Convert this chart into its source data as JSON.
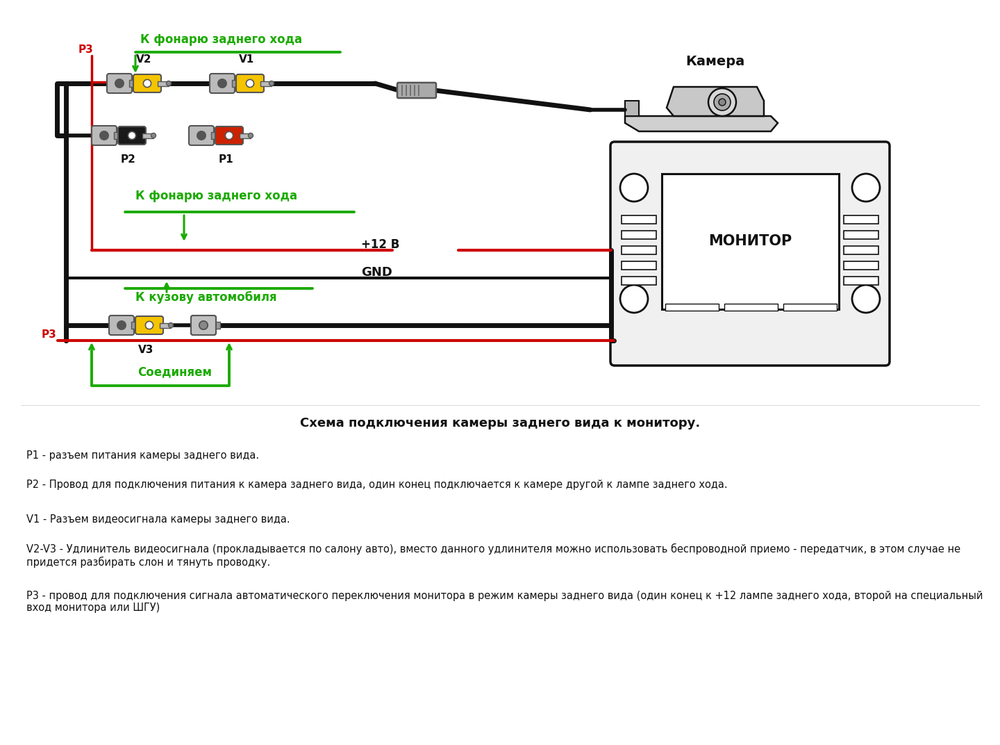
{
  "background_color": "#ffffff",
  "title_text": "Схема подключения камеры заднего вида к монитору.",
  "label_kamera": "Камера",
  "label_monitor": "МОНИТОР",
  "label_12v": "+12 В",
  "label_gnd": "GND",
  "label_k_fonarju1": "К фонарю заднего хода",
  "label_k_fonarju2": "К фонарю заднего хода",
  "label_k_kuzovu": "К кузову автомобиля",
  "label_soedinyaem": "Соединяем",
  "label_P1": "P1",
  "label_P2": "P2",
  "label_P3_top": "P3",
  "label_P3_bot": "P3",
  "label_V1": "V1",
  "label_V2": "V2",
  "label_V3": "V3",
  "desc_P1": "P1 - разъем питания камеры заднего вида.",
  "desc_P2": "P2 - Провод для подключения питания к камера заднего вида, один конец подключается к камере другой к лампе заднего хода.",
  "desc_V1": "V1 - Разъем видеосигнала камеры заднего вида.",
  "desc_V2V3": "V2-V3 - Удлинитель видеосигнала (прокладывается по салону авто), вместо данного удлинителя можно использовать беспроводной приемо - передатчик, в этом случае не придется разбирать слон и тянуть проводку.",
  "desc_P3": "Р3 - провод для подключения сигнала автоматического переключения монитора в режим камеры заднего вида (один конец к +12 лампе заднего хода, второй на специальный вход монитора или ШГУ)",
  "color_green": "#1aaa00",
  "color_red": "#cc0000",
  "color_black": "#111111",
  "color_yellow": "#f5c400",
  "color_gray": "#999999",
  "color_dark_gray": "#555555",
  "color_text": "#111111",
  "figwidth": 14.4,
  "figheight": 10.72,
  "dpi": 100
}
